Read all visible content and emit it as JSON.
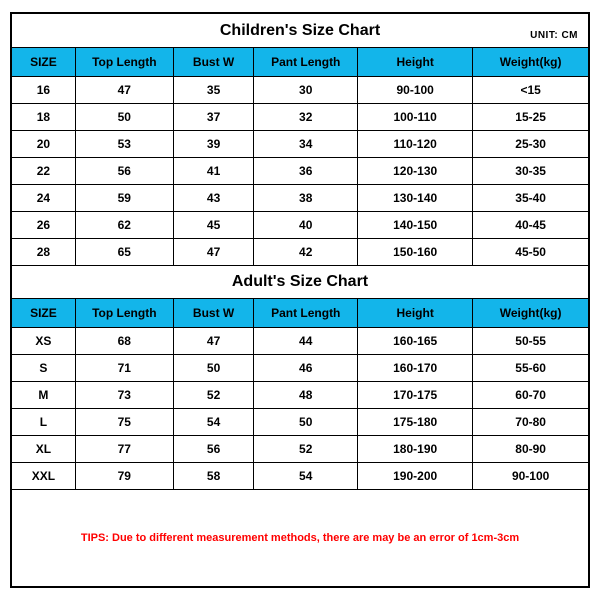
{
  "children": {
    "title": "Children's Size Chart",
    "unit": "UNIT:  CM",
    "columns": [
      "SIZE",
      "Top Length",
      "Bust W",
      "Pant Length",
      "Height",
      "Weight(kg)"
    ],
    "rows": [
      [
        "16",
        "47",
        "35",
        "30",
        "90-100",
        "<15"
      ],
      [
        "18",
        "50",
        "37",
        "32",
        "100-110",
        "15-25"
      ],
      [
        "20",
        "53",
        "39",
        "34",
        "110-120",
        "25-30"
      ],
      [
        "22",
        "56",
        "41",
        "36",
        "120-130",
        "30-35"
      ],
      [
        "24",
        "59",
        "43",
        "38",
        "130-140",
        "35-40"
      ],
      [
        "26",
        "62",
        "45",
        "40",
        "140-150",
        "40-45"
      ],
      [
        "28",
        "65",
        "47",
        "42",
        "150-160",
        "45-50"
      ]
    ]
  },
  "adult": {
    "title": "Adult's Size Chart",
    "columns": [
      "SIZE",
      "Top Length",
      "Bust W",
      "Pant Length",
      "Height",
      "Weight(kg)"
    ],
    "rows": [
      [
        "XS",
        "68",
        "47",
        "44",
        "160-165",
        "50-55"
      ],
      [
        "S",
        "71",
        "50",
        "46",
        "160-170",
        "55-60"
      ],
      [
        "M",
        "73",
        "52",
        "48",
        "170-175",
        "60-70"
      ],
      [
        "L",
        "75",
        "54",
        "50",
        "175-180",
        "70-80"
      ],
      [
        "XL",
        "77",
        "56",
        "52",
        "180-190",
        "80-90"
      ],
      [
        "XXL",
        "79",
        "58",
        "54",
        "190-200",
        "90-100"
      ]
    ]
  },
  "tips": "TIPS: Due to different measurement methods, there are may be an error of 1cm-3cm",
  "style": {
    "header_bg": "#13b5ea",
    "border_color": "#000000",
    "tips_color": "#ff0000",
    "font_family": "Arial",
    "title_fontsize": 16,
    "header_fontsize": 12,
    "cell_fontsize": 12,
    "tips_fontsize": 11
  }
}
